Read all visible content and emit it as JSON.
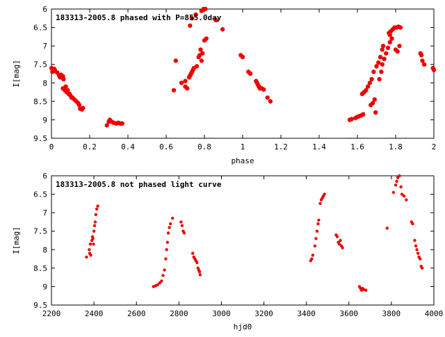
{
  "chart_data": [
    {
      "type": "scatter",
      "title": "183313-2005.8 phased with P=855.0day",
      "xlabel": "phase",
      "ylabel": "I[mag]",
      "xlim": [
        0,
        2
      ],
      "ylim": [
        6,
        9.5
      ],
      "y_inverted": true,
      "grid": false,
      "marker_color": "#ee0000",
      "xticks": [
        "0",
        "0.2",
        "0.4",
        "0.6",
        "0.8",
        "1",
        "1.2",
        "1.4",
        "1.6",
        "1.8",
        "2"
      ],
      "yticks": [
        "6",
        "6.5",
        "7",
        "7.5",
        "8",
        "8.5",
        "9",
        "9.5"
      ],
      "points": [
        [
          0.0,
          7.6
        ],
        [
          0.005,
          7.7
        ],
        [
          0.01,
          7.65
        ],
        [
          0.015,
          7.62
        ],
        [
          0.02,
          7.68
        ],
        [
          0.03,
          7.72
        ],
        [
          0.04,
          7.8
        ],
        [
          0.045,
          7.85
        ],
        [
          0.05,
          7.78
        ],
        [
          0.06,
          7.82
        ],
        [
          0.063,
          7.9
        ],
        [
          0.06,
          8.15
        ],
        [
          0.07,
          8.2
        ],
        [
          0.08,
          8.25
        ],
        [
          0.09,
          8.3
        ],
        [
          0.1,
          8.35
        ],
        [
          0.11,
          8.4
        ],
        [
          0.12,
          8.45
        ],
        [
          0.075,
          8.1
        ],
        [
          0.085,
          8.2
        ],
        [
          0.095,
          8.3
        ],
        [
          0.105,
          8.4
        ],
        [
          0.13,
          8.5
        ],
        [
          0.14,
          8.55
        ],
        [
          0.145,
          8.6
        ],
        [
          0.15,
          8.7
        ],
        [
          0.16,
          8.72
        ],
        [
          0.165,
          8.68
        ],
        [
          0.29,
          9.15
        ],
        [
          0.3,
          9.05
        ],
        [
          0.305,
          9.0
        ],
        [
          0.315,
          9.05
        ],
        [
          0.325,
          9.08
        ],
        [
          0.34,
          9.1
        ],
        [
          0.35,
          9.08
        ],
        [
          0.36,
          9.1
        ],
        [
          0.37,
          9.1
        ],
        [
          0.64,
          8.2
        ],
        [
          0.65,
          7.4
        ],
        [
          0.68,
          8.0
        ],
        [
          0.7,
          8.1
        ],
        [
          0.71,
          8.15
        ],
        [
          0.7,
          7.95
        ],
        [
          0.72,
          7.85
        ],
        [
          0.725,
          7.8
        ],
        [
          0.73,
          7.75
        ],
        [
          0.735,
          7.7
        ],
        [
          0.74,
          7.65
        ],
        [
          0.745,
          7.6
        ],
        [
          0.725,
          6.45
        ],
        [
          0.735,
          6.25
        ],
        [
          0.755,
          6.15
        ],
        [
          0.76,
          7.55
        ],
        [
          0.77,
          7.3
        ],
        [
          0.775,
          7.25
        ],
        [
          0.78,
          7.1
        ],
        [
          0.785,
          7.4
        ],
        [
          0.79,
          7.2
        ],
        [
          0.785,
          6.05
        ],
        [
          0.795,
          6.0
        ],
        [
          0.805,
          6.0
        ],
        [
          0.8,
          6.85
        ],
        [
          0.81,
          6.8
        ],
        [
          0.86,
          6.3
        ],
        [
          0.895,
          6.55
        ],
        [
          0.99,
          7.25
        ],
        [
          1.0,
          7.3
        ],
        [
          1.03,
          7.7
        ],
        [
          1.04,
          7.75
        ],
        [
          1.07,
          7.95
        ],
        [
          1.075,
          8.0
        ],
        [
          1.08,
          8.05
        ],
        [
          1.085,
          8.1
        ],
        [
          1.09,
          8.15
        ],
        [
          1.1,
          8.15
        ],
        [
          1.11,
          8.18
        ],
        [
          1.13,
          8.4
        ],
        [
          1.145,
          8.5
        ],
        [
          1.56,
          9.0
        ],
        [
          1.57,
          8.98
        ],
        [
          1.59,
          8.95
        ],
        [
          1.6,
          8.92
        ],
        [
          1.61,
          8.9
        ],
        [
          1.62,
          8.88
        ],
        [
          1.63,
          8.85
        ],
        [
          1.625,
          8.3
        ],
        [
          1.635,
          8.25
        ],
        [
          1.645,
          8.2
        ],
        [
          1.655,
          8.1
        ],
        [
          1.665,
          8.0
        ],
        [
          1.675,
          7.9
        ],
        [
          1.67,
          8.6
        ],
        [
          1.68,
          8.55
        ],
        [
          1.69,
          8.45
        ],
        [
          1.695,
          8.8
        ],
        [
          1.685,
          7.7
        ],
        [
          1.7,
          7.55
        ],
        [
          1.71,
          7.45
        ],
        [
          1.715,
          7.9
        ],
        [
          1.72,
          7.3
        ],
        [
          1.725,
          7.7
        ],
        [
          1.73,
          7.1
        ],
        [
          1.735,
          7.0
        ],
        [
          1.73,
          7.5
        ],
        [
          1.74,
          7.35
        ],
        [
          1.75,
          7.2
        ],
        [
          1.76,
          7.05
        ],
        [
          1.77,
          6.9
        ],
        [
          1.78,
          6.8
        ],
        [
          1.765,
          6.65
        ],
        [
          1.77,
          6.7
        ],
        [
          1.775,
          6.6
        ],
        [
          1.785,
          6.55
        ],
        [
          1.795,
          6.5
        ],
        [
          1.805,
          6.5
        ],
        [
          1.815,
          6.48
        ],
        [
          1.825,
          6.5
        ],
        [
          1.8,
          7.1
        ],
        [
          1.81,
          7.15
        ],
        [
          1.82,
          7.0
        ],
        [
          1.93,
          7.2
        ],
        [
          1.935,
          7.25
        ],
        [
          1.94,
          7.4
        ],
        [
          1.95,
          7.5
        ],
        [
          1.995,
          7.6
        ],
        [
          2.0,
          7.65
        ]
      ]
    },
    {
      "type": "scatter",
      "title": "183313-2005.8 not phased light curve",
      "xlabel": "hjd0",
      "ylabel": "I[mag]",
      "xlim": [
        2200,
        4000
      ],
      "ylim": [
        6,
        9.5
      ],
      "y_inverted": true,
      "grid": false,
      "marker_color": "#ee0000",
      "xticks": [
        "2200",
        "2400",
        "2600",
        "2800",
        "3000",
        "3200",
        "3400",
        "3600",
        "3800",
        "4000"
      ],
      "yticks": [
        "6",
        "6.5",
        "7",
        "7.5",
        "8",
        "8.5",
        "9",
        "9.5"
      ],
      "points": [
        [
          2365,
          8.2
        ],
        [
          2378,
          8.0
        ],
        [
          2380,
          8.1
        ],
        [
          2383,
          7.85
        ],
        [
          2385,
          8.15
        ],
        [
          2390,
          7.75
        ],
        [
          2393,
          7.65
        ],
        [
          2395,
          7.7
        ],
        [
          2398,
          7.85
        ],
        [
          2400,
          7.5
        ],
        [
          2403,
          7.35
        ],
        [
          2406,
          7.25
        ],
        [
          2409,
          7.05
        ],
        [
          2413,
          6.9
        ],
        [
          2418,
          6.82
        ],
        [
          2680,
          9.0
        ],
        [
          2690,
          8.98
        ],
        [
          2700,
          8.95
        ],
        [
          2710,
          8.9
        ],
        [
          2718,
          8.85
        ],
        [
          2725,
          8.7
        ],
        [
          2732,
          8.55
        ],
        [
          2738,
          8.25
        ],
        [
          2742,
          8.0
        ],
        [
          2746,
          7.8
        ],
        [
          2750,
          7.55
        ],
        [
          2755,
          7.4
        ],
        [
          2760,
          7.3
        ],
        [
          2770,
          7.15
        ],
        [
          2810,
          7.25
        ],
        [
          2815,
          7.35
        ],
        [
          2820,
          7.5
        ],
        [
          2825,
          7.55
        ],
        [
          2865,
          8.1
        ],
        [
          2870,
          8.2
        ],
        [
          2875,
          8.25
        ],
        [
          2880,
          8.3
        ],
        [
          2885,
          8.35
        ],
        [
          2890,
          8.5
        ],
        [
          2893,
          8.55
        ],
        [
          2897,
          8.6
        ],
        [
          2900,
          8.68
        ],
        [
          3420,
          8.3
        ],
        [
          3425,
          8.25
        ],
        [
          3430,
          8.15
        ],
        [
          3440,
          7.9
        ],
        [
          3445,
          7.7
        ],
        [
          3450,
          7.5
        ],
        [
          3455,
          7.3
        ],
        [
          3458,
          7.2
        ],
        [
          3465,
          6.75
        ],
        [
          3470,
          6.65
        ],
        [
          3475,
          6.6
        ],
        [
          3480,
          6.55
        ],
        [
          3485,
          6.5
        ],
        [
          3540,
          7.6
        ],
        [
          3545,
          7.65
        ],
        [
          3550,
          7.8
        ],
        [
          3555,
          7.85
        ],
        [
          3560,
          7.75
        ],
        [
          3565,
          7.9
        ],
        [
          3570,
          7.95
        ],
        [
          3650,
          9.0
        ],
        [
          3655,
          9.05
        ],
        [
          3660,
          9.1
        ],
        [
          3665,
          9.05
        ],
        [
          3670,
          9.08
        ],
        [
          3680,
          9.1
        ],
        [
          3780,
          7.42
        ],
        [
          3810,
          6.45
        ],
        [
          3820,
          6.25
        ],
        [
          3825,
          6.15
        ],
        [
          3830,
          6.05
        ],
        [
          3838,
          6.0
        ],
        [
          3845,
          6.3
        ],
        [
          3850,
          6.5
        ],
        [
          3860,
          6.55
        ],
        [
          3870,
          6.65
        ],
        [
          3895,
          7.25
        ],
        [
          3900,
          7.3
        ],
        [
          3910,
          7.75
        ],
        [
          3915,
          7.9
        ],
        [
          3920,
          8.0
        ],
        [
          3925,
          8.1
        ],
        [
          3930,
          8.2
        ],
        [
          3935,
          8.25
        ],
        [
          3940,
          8.45
        ],
        [
          3945,
          8.5
        ]
      ]
    }
  ]
}
